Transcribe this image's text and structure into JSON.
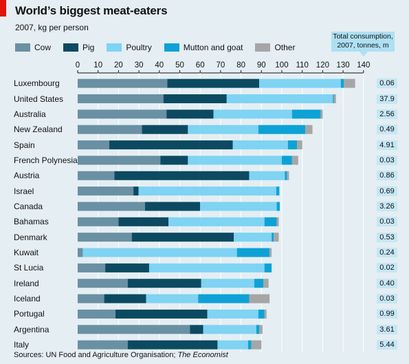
{
  "header": {
    "title": "World’s biggest meat-eaters",
    "subtitle": "2007, kg per person",
    "totals_label_line1": "Total consumption,",
    "totals_label_line2": "2007, tonnes, m"
  },
  "legend": [
    {
      "label": "Cow",
      "color": "#6a90a3"
    },
    {
      "label": "Pig",
      "color": "#0c4a62"
    },
    {
      "label": "Poultry",
      "color": "#7fd3f3"
    },
    {
      "label": "Mutton and goat",
      "color": "#0da2d6"
    },
    {
      "label": "Other",
      "color": "#a6a6a6"
    }
  ],
  "source": {
    "prefix": "Sources: UN Food and Agriculture Organisation; ",
    "italic": "The Economist"
  },
  "chart_data": {
    "type": "bar",
    "orientation": "horizontal",
    "stacked": true,
    "title": "World’s biggest meat-eaters",
    "subtitle": "2007, kg per person",
    "xlim": [
      0,
      140
    ],
    "xticks": [
      0,
      10,
      20,
      30,
      40,
      50,
      60,
      70,
      80,
      90,
      100,
      110,
      120,
      130,
      140
    ],
    "grid": true,
    "legend_position": "top",
    "categories": [
      "Luxembourg",
      "United States",
      "Australia",
      "New Zealand",
      "Spain",
      "French Polynesia",
      "Austria",
      "Israel",
      "Canada",
      "Bahamas",
      "Denmark",
      "Kuwait",
      "St Lucia",
      "Ireland",
      "Iceland",
      "Portugal",
      "Argentina",
      "Italy"
    ],
    "series": [
      {
        "name": "Cow",
        "values": [
          43.9,
          42,
          43.5,
          31.5,
          15.5,
          40.5,
          18,
          27.3,
          33,
          20,
          26.5,
          2.5,
          13.5,
          24.5,
          13,
          18.5,
          55,
          24.5
        ]
      },
      {
        "name": "Pig",
        "values": [
          45,
          31,
          23,
          22.5,
          60.5,
          13.5,
          66,
          2.5,
          27,
          24.5,
          50,
          0,
          21.5,
          36,
          20.5,
          45,
          6.5,
          44
        ]
      },
      {
        "name": "Poultry",
        "values": [
          40,
          52,
          38.5,
          34.5,
          27,
          46,
          17.5,
          67.5,
          37.5,
          47,
          18.5,
          75.5,
          56.5,
          26,
          25.5,
          25,
          26,
          15
        ]
      },
      {
        "name": "Mutton and goat",
        "values": [
          1.5,
          0.5,
          14,
          23,
          4.5,
          5,
          1,
          1.5,
          1.5,
          6,
          1,
          16,
          3.5,
          4.5,
          25,
          3,
          1.5,
          1.5
        ]
      },
      {
        "name": "Other",
        "values": [
          5.5,
          1,
          1,
          3.5,
          2.5,
          3,
          1,
          0,
          0,
          1,
          2.5,
          1,
          0,
          2.5,
          10,
          1,
          1.5,
          5
        ]
      }
    ],
    "total_consumption_tonnes_m": [
      "0.06",
      "37.9",
      "2.56",
      "0.49",
      "4.91",
      "0.03",
      "0.86",
      "0.69",
      "3.26",
      "0.03",
      "0.53",
      "0.24",
      "0.02",
      "0.40",
      "0.03",
      "0.99",
      "3.61",
      "5.44"
    ]
  }
}
